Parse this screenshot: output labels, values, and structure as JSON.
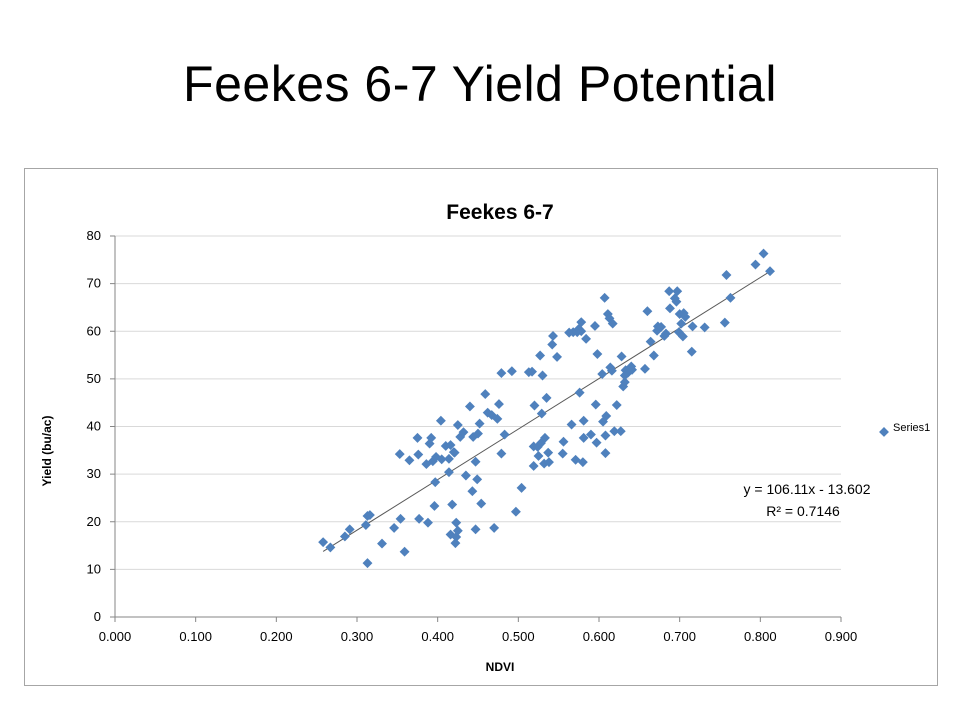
{
  "slide": {
    "title": "Feekes 6-7 Yield Potential"
  },
  "chart_data": {
    "type": "scatter",
    "title": "Feekes 6-7",
    "xlabel": "NDVI",
    "ylabel": "Yield (bu/ac)",
    "xlim": [
      0,
      0.9
    ],
    "ylim": [
      0,
      80
    ],
    "xticks": [
      "0.000",
      "0.100",
      "0.200",
      "0.300",
      "0.400",
      "0.500",
      "0.600",
      "0.700",
      "0.800",
      "0.900"
    ],
    "yticks": [
      "0",
      "10",
      "20",
      "30",
      "40",
      "50",
      "60",
      "70",
      "80"
    ],
    "grid": "horizontal",
    "legend_position": "right",
    "marker_color": "#4f81bd",
    "trendline_color": "#595959",
    "series": [
      {
        "name": "Series1",
        "points": [
          [
            0.258,
            15.7
          ],
          [
            0.267,
            14.6
          ],
          [
            0.285,
            16.9
          ],
          [
            0.291,
            18.4
          ],
          [
            0.311,
            19.3
          ],
          [
            0.313,
            21.2
          ],
          [
            0.316,
            21.4
          ],
          [
            0.313,
            11.3
          ],
          [
            0.331,
            15.4
          ],
          [
            0.346,
            18.7
          ],
          [
            0.354,
            20.6
          ],
          [
            0.359,
            13.7
          ],
          [
            0.353,
            34.2
          ],
          [
            0.365,
            32.9
          ],
          [
            0.376,
            34.1
          ],
          [
            0.375,
            37.6
          ],
          [
            0.377,
            20.6
          ],
          [
            0.388,
            19.8
          ],
          [
            0.386,
            32.1
          ],
          [
            0.39,
            36.4
          ],
          [
            0.392,
            37.6
          ],
          [
            0.394,
            32.7
          ],
          [
            0.396,
            23.3
          ],
          [
            0.397,
            28.3
          ],
          [
            0.398,
            33.6
          ],
          [
            0.404,
            41.2
          ],
          [
            0.405,
            33.1
          ],
          [
            0.41,
            35.9
          ],
          [
            0.414,
            30.4
          ],
          [
            0.414,
            33.2
          ],
          [
            0.416,
            36.1
          ],
          [
            0.416,
            17.3
          ],
          [
            0.418,
            23.6
          ],
          [
            0.42,
            34.6
          ],
          [
            0.421,
            34.5
          ],
          [
            0.422,
            15.5
          ],
          [
            0.423,
            19.8
          ],
          [
            0.423,
            16.8
          ],
          [
            0.425,
            40.3
          ],
          [
            0.425,
            18.1
          ],
          [
            0.428,
            37.8
          ],
          [
            0.432,
            38.8
          ],
          [
            0.435,
            29.7
          ],
          [
            0.44,
            44.2
          ],
          [
            0.443,
            26.4
          ],
          [
            0.444,
            37.8
          ],
          [
            0.447,
            18.4
          ],
          [
            0.447,
            32.6
          ],
          [
            0.449,
            28.9
          ],
          [
            0.45,
            38.5
          ],
          [
            0.452,
            40.6
          ],
          [
            0.454,
            23.8
          ],
          [
            0.459,
            46.8
          ],
          [
            0.462,
            42.9
          ],
          [
            0.467,
            42.4
          ],
          [
            0.47,
            18.7
          ],
          [
            0.474,
            41.6
          ],
          [
            0.476,
            44.7
          ],
          [
            0.479,
            51.2
          ],
          [
            0.479,
            34.3
          ],
          [
            0.483,
            38.3
          ],
          [
            0.492,
            51.6
          ],
          [
            0.497,
            22.1
          ],
          [
            0.504,
            27.1
          ],
          [
            0.513,
            51.4
          ],
          [
            0.517,
            51.5
          ],
          [
            0.519,
            35.8
          ],
          [
            0.519,
            31.7
          ],
          [
            0.52,
            44.4
          ],
          [
            0.524,
            35.7
          ],
          [
            0.525,
            33.8
          ],
          [
            0.527,
            54.9
          ],
          [
            0.528,
            36.5
          ],
          [
            0.529,
            42.7
          ],
          [
            0.53,
            50.7
          ],
          [
            0.532,
            32.2
          ],
          [
            0.533,
            37.6
          ],
          [
            0.535,
            46.0
          ],
          [
            0.537,
            34.5
          ],
          [
            0.538,
            32.5
          ],
          [
            0.542,
            57.2
          ],
          [
            0.543,
            59.0
          ],
          [
            0.548,
            54.6
          ],
          [
            0.555,
            34.3
          ],
          [
            0.556,
            36.8
          ],
          [
            0.563,
            59.7
          ],
          [
            0.566,
            40.4
          ],
          [
            0.568,
            59.8
          ],
          [
            0.571,
            33.0
          ],
          [
            0.573,
            59.8
          ],
          [
            0.575,
            60.5
          ],
          [
            0.576,
            47.1
          ],
          [
            0.578,
            60.0
          ],
          [
            0.578,
            61.9
          ],
          [
            0.58,
            32.5
          ],
          [
            0.581,
            41.2
          ],
          [
            0.581,
            37.6
          ],
          [
            0.584,
            58.4
          ],
          [
            0.59,
            38.3
          ],
          [
            0.595,
            61.1
          ],
          [
            0.596,
            44.6
          ],
          [
            0.597,
            36.6
          ],
          [
            0.598,
            55.2
          ],
          [
            0.604,
            51.0
          ],
          [
            0.605,
            41.0
          ],
          [
            0.607,
            67.0
          ],
          [
            0.608,
            38.1
          ],
          [
            0.608,
            34.4
          ],
          [
            0.609,
            42.2
          ],
          [
            0.611,
            63.6
          ],
          [
            0.613,
            62.7
          ],
          [
            0.614,
            52.4
          ],
          [
            0.616,
            51.7
          ],
          [
            0.617,
            61.6
          ],
          [
            0.619,
            39.0
          ],
          [
            0.622,
            44.5
          ],
          [
            0.627,
            39.0
          ],
          [
            0.628,
            54.7
          ],
          [
            0.63,
            48.4
          ],
          [
            0.632,
            49.3
          ],
          [
            0.632,
            50.7
          ],
          [
            0.633,
            51.8
          ],
          [
            0.636,
            51.3
          ],
          [
            0.638,
            52.0
          ],
          [
            0.64,
            52.6
          ],
          [
            0.641,
            51.9
          ],
          [
            0.657,
            52.1
          ],
          [
            0.66,
            64.2
          ],
          [
            0.664,
            57.8
          ],
          [
            0.668,
            54.9
          ],
          [
            0.672,
            60.1
          ],
          [
            0.673,
            61.0
          ],
          [
            0.677,
            60.9
          ],
          [
            0.681,
            59.0
          ],
          [
            0.683,
            59.5
          ],
          [
            0.687,
            68.4
          ],
          [
            0.688,
            64.8
          ],
          [
            0.694,
            66.9
          ],
          [
            0.696,
            66.2
          ],
          [
            0.697,
            68.4
          ],
          [
            0.699,
            59.8
          ],
          [
            0.7,
            63.6
          ],
          [
            0.702,
            61.6
          ],
          [
            0.704,
            58.9
          ],
          [
            0.705,
            63.8
          ],
          [
            0.707,
            63.0
          ],
          [
            0.715,
            55.7
          ],
          [
            0.716,
            61.0
          ],
          [
            0.731,
            60.8
          ],
          [
            0.756,
            61.8
          ],
          [
            0.758,
            71.8
          ],
          [
            0.763,
            67.0
          ],
          [
            0.794,
            74.0
          ],
          [
            0.804,
            76.3
          ],
          [
            0.812,
            72.6
          ]
        ]
      }
    ],
    "trendline": {
      "type": "linear",
      "slope": 106.11,
      "intercept": -13.602,
      "x_range": [
        0.258,
        0.812
      ],
      "equation_label": "y = 106.11x - 13.602",
      "r2_label": "R² = 0.7146"
    }
  }
}
